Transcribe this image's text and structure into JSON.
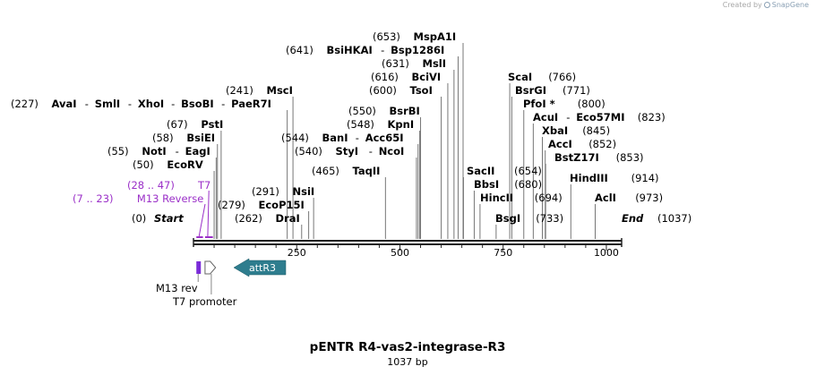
{
  "credit": {
    "prefix": "Created by",
    "brand": "SnapGene",
    "icon": "snapgene-logo-icon"
  },
  "map": {
    "name": "pENTR R4-vas2-integrase-R3",
    "length_label": "1037 bp",
    "length": 1037,
    "ticks": [
      {
        "pos": 250,
        "label": "250"
      },
      {
        "pos": 500,
        "label": "500"
      },
      {
        "pos": 750,
        "label": "750"
      },
      {
        "pos": 1000,
        "label": "1000"
      }
    ],
    "colors": {
      "enzyme": "#000000",
      "primer": "#9b30c8",
      "line": "#777777",
      "attr": "#2e7d8e",
      "m13": "#7a2bd8"
    }
  },
  "enzyme_rows": [
    {
      "items": [
        {
          "pos": 653,
          "label": "(653)",
          "name": "MspA1I"
        }
      ]
    },
    {
      "items": [
        {
          "pos": 641,
          "label": "(641)",
          "name": "BsiHKAI"
        },
        {
          "pos": 641,
          "name": "Bsp1286I"
        }
      ]
    },
    {
      "items": [
        {
          "pos": 631,
          "label": "(631)",
          "name": "MslI"
        }
      ]
    },
    {
      "items": [
        {
          "pos": 616,
          "label": "(616)",
          "name": "BciVI"
        }
      ]
    },
    {
      "items": [
        {
          "pos": 600,
          "label": "(600)",
          "name": "TsoI"
        }
      ]
    },
    {
      "items": [
        {
          "pos": 227,
          "label": "(227)",
          "name": "AvaI"
        },
        {
          "pos": 227,
          "name": "SmlI"
        },
        {
          "pos": 227,
          "name": "XhoI"
        },
        {
          "pos": 227,
          "name": "BsoBI"
        },
        {
          "pos": 227,
          "name": "PaeR7I"
        }
      ]
    },
    {
      "items": [
        {
          "pos": 241,
          "label": "(241)",
          "name": "MscI"
        }
      ]
    },
    {
      "items": [
        {
          "pos": 67,
          "label": "(67)",
          "name": "PstI"
        }
      ]
    },
    {
      "items": [
        {
          "pos": 58,
          "label": "(58)",
          "name": "BsiEI"
        }
      ]
    },
    {
      "items": [
        {
          "pos": 55,
          "label": "(55)",
          "name": "NotI"
        },
        {
          "pos": 55,
          "name": "EagI"
        }
      ]
    },
    {
      "items": [
        {
          "pos": 50,
          "label": "(50)",
          "name": "EcoRV"
        }
      ]
    },
    {
      "items": [
        {
          "pos": 550,
          "label": "(550)",
          "name": "BsrBI"
        }
      ]
    },
    {
      "items": [
        {
          "pos": 548,
          "label": "(548)",
          "name": "KpnI"
        }
      ]
    },
    {
      "items": [
        {
          "pos": 544,
          "label": "(544)",
          "name": "BanI"
        },
        {
          "pos": 544,
          "name": "Acc65I"
        }
      ]
    },
    {
      "items": [
        {
          "pos": 540,
          "label": "(540)",
          "name": "StyI"
        },
        {
          "pos": 540,
          "name": "NcoI"
        }
      ]
    },
    {
      "items": [
        {
          "pos": 465,
          "label": "(465)",
          "name": "TaqII"
        }
      ]
    },
    {
      "items": [
        {
          "pos": 291,
          "label": "(291)",
          "name": "NsiI"
        }
      ]
    },
    {
      "items": [
        {
          "pos": 279,
          "label": "(279)",
          "name": "EcoP15I"
        }
      ]
    },
    {
      "items": [
        {
          "pos": 262,
          "label": "(262)",
          "name": "DraI"
        }
      ]
    },
    {
      "items": [
        {
          "pos": 766,
          "name": "ScaI",
          "label": "(766)"
        }
      ]
    },
    {
      "items": [
        {
          "pos": 771,
          "name": "BsrGI",
          "label": "(771)"
        }
      ]
    },
    {
      "items": [
        {
          "pos": 800,
          "name": "PfoI *",
          "label": "(800)"
        }
      ]
    },
    {
      "items": [
        {
          "pos": 823,
          "name": "AcuI",
          "label": "(823)"
        },
        {
          "pos": 823,
          "name": "Eco57MI"
        }
      ]
    },
    {
      "items": [
        {
          "pos": 845,
          "name": "XbaI",
          "label": "(845)"
        }
      ]
    },
    {
      "items": [
        {
          "pos": 852,
          "name": "AccI",
          "label": "(852)"
        }
      ]
    },
    {
      "items": [
        {
          "pos": 853,
          "name": "BstZ17I",
          "label": "(853)"
        }
      ]
    },
    {
      "items": [
        {
          "pos": 654,
          "name": "SacII",
          "label": "(654)"
        }
      ]
    },
    {
      "items": [
        {
          "pos": 680,
          "name": "BbsI",
          "label": "(680)"
        }
      ]
    },
    {
      "items": [
        {
          "pos": 694,
          "name": "HincII",
          "label": "(694)"
        }
      ]
    },
    {
      "items": [
        {
          "pos": 733,
          "name": "BsgI",
          "label": "(733)"
        }
      ]
    },
    {
      "items": [
        {
          "pos": 914,
          "name": "HindIII",
          "label": "(914)"
        }
      ]
    },
    {
      "items": [
        {
          "pos": 973,
          "name": "AclI",
          "label": "(973)"
        }
      ]
    },
    {
      "items": [
        {
          "pos": 0,
          "label": "(0)",
          "name": "Start"
        }
      ]
    },
    {
      "items": [
        {
          "pos": 1037,
          "name": "End",
          "label": "(1037)"
        }
      ]
    }
  ],
  "primers": [
    {
      "name": "T7",
      "label": "(28 .. 47)",
      "start": 28,
      "end": 47
    },
    {
      "name": "M13 Reverse",
      "label": "(7 .. 23)",
      "start": 7,
      "end": 23
    }
  ],
  "features": [
    {
      "name": "attR3",
      "start": 100,
      "end": 225,
      "direction": "reverse",
      "color": "#2e7d8e"
    },
    {
      "name": "M13 rev",
      "start": 7,
      "end": 23,
      "direction": "forward",
      "color": "#7a2bd8"
    },
    {
      "name": "T7 promoter",
      "start": 28,
      "end": 47,
      "direction": "forward",
      "color": "#ffffff"
    }
  ]
}
